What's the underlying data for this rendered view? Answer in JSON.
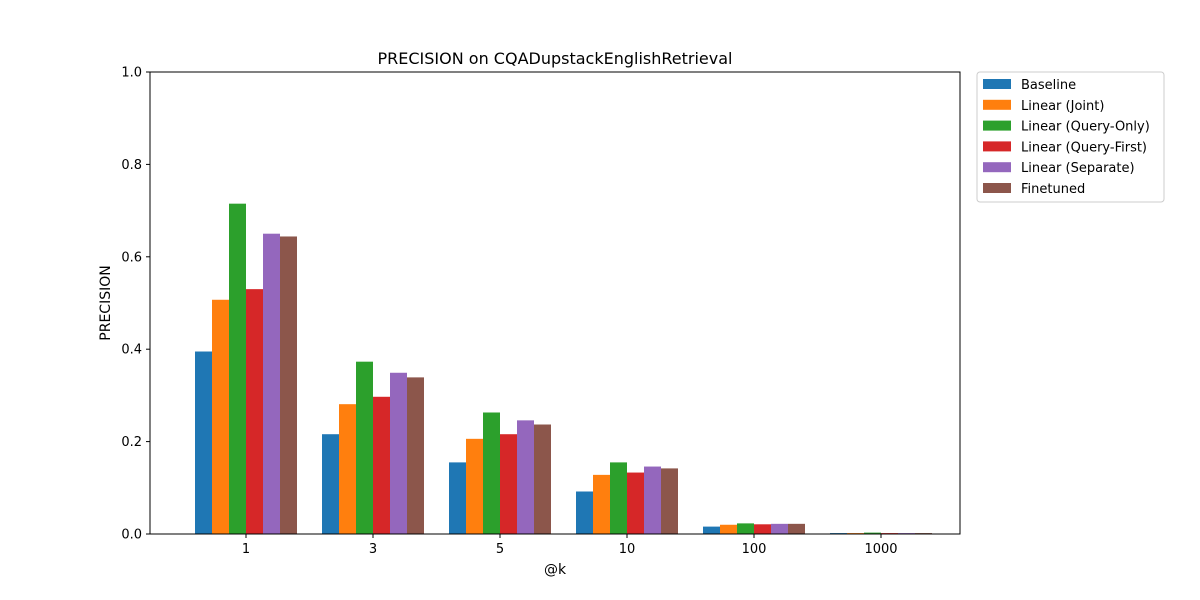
{
  "chart_data": {
    "type": "bar",
    "title": "PRECISION on CQADupstackEnglishRetrieval",
    "xlabel": "@k",
    "ylabel": "PRECISION",
    "categories": [
      "1",
      "3",
      "5",
      "10",
      "100",
      "1000"
    ],
    "ylim": [
      0,
      1.0
    ],
    "yticks": [
      "0.0",
      "0.2",
      "0.4",
      "0.6",
      "0.8",
      "1.0"
    ],
    "grid": false,
    "legend_position": "outside-top-right",
    "series": [
      {
        "name": "Baseline",
        "color": "#1f77b4",
        "values": [
          0.395,
          0.216,
          0.155,
          0.092,
          0.016,
          0.002
        ]
      },
      {
        "name": "Linear (Joint)",
        "color": "#ff7f0e",
        "values": [
          0.507,
          0.281,
          0.206,
          0.128,
          0.02,
          0.002
        ]
      },
      {
        "name": "Linear (Query-Only)",
        "color": "#2ca02c",
        "values": [
          0.715,
          0.373,
          0.263,
          0.155,
          0.023,
          0.003
        ]
      },
      {
        "name": "Linear (Query-First)",
        "color": "#d62728",
        "values": [
          0.53,
          0.297,
          0.216,
          0.133,
          0.021,
          0.002
        ]
      },
      {
        "name": "Linear (Separate)",
        "color": "#9467bd",
        "values": [
          0.65,
          0.349,
          0.246,
          0.146,
          0.022,
          0.002
        ]
      },
      {
        "name": "Finetuned",
        "color": "#8c564b",
        "values": [
          0.644,
          0.339,
          0.237,
          0.142,
          0.022,
          0.002
        ]
      }
    ]
  }
}
